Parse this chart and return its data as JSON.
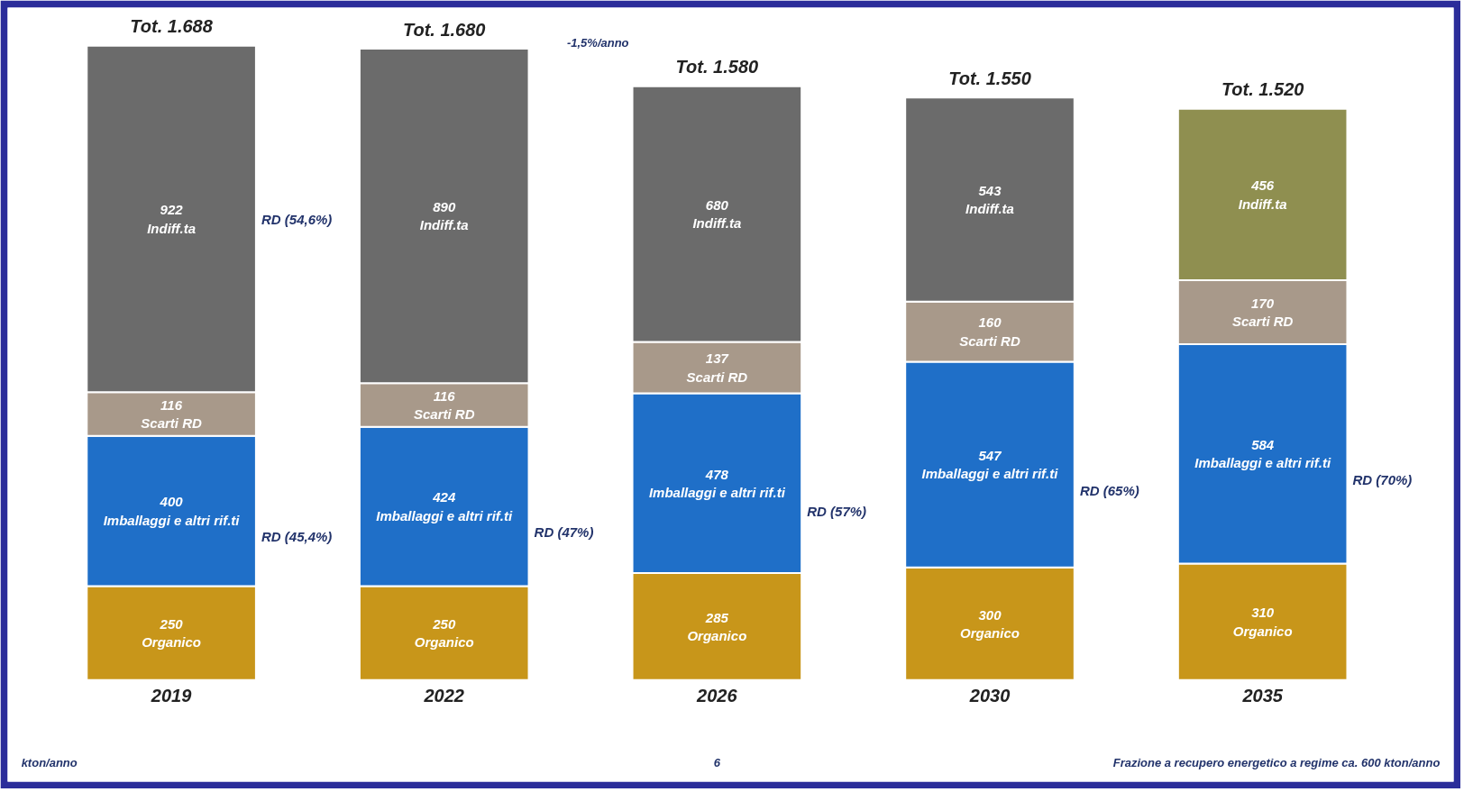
{
  "chart_data": {
    "type": "bar",
    "stacked": true,
    "categories": [
      "2019",
      "2022",
      "2026",
      "2030",
      "2035"
    ],
    "series": [
      {
        "name": "Organico",
        "color": "#c8961a",
        "values": [
          250,
          250,
          285,
          300,
          310
        ]
      },
      {
        "name": "Imballaggi e altri rif.ti",
        "color": "#1f6fc8",
        "values": [
          400,
          424,
          478,
          547,
          584
        ]
      },
      {
        "name": "Scarti RD",
        "color": "#a8998a",
        "values": [
          116,
          116,
          137,
          160,
          170
        ]
      },
      {
        "name": "Indiff.ta",
        "colors": [
          "#6b6b6b",
          "#6b6b6b",
          "#6b6b6b",
          "#6b6b6b",
          "#8f8f50"
        ],
        "values": [
          922,
          890,
          680,
          543,
          456
        ]
      }
    ],
    "data_labels": true,
    "totals": [
      "Tot. 1.688",
      "Tot. 1.680",
      "Tot. 1.580",
      "Tot. 1.550",
      "Tot. 1.520"
    ],
    "annotations": [
      "RD (54,6%)",
      "RD (45,4%)",
      "RD (47%)",
      "RD (57%)",
      "RD (65%)",
      "RD (70%)",
      "-1,5%/anno",
      "kton/anno",
      "6",
      "Frazione a recupero energetico a regime ca. 600 kton/anno"
    ],
    "grid": false
  }
}
